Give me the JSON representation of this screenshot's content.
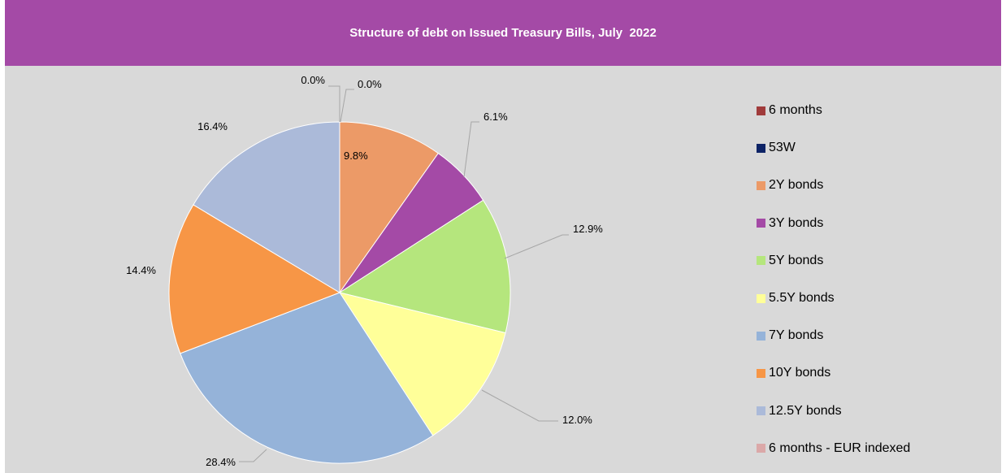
{
  "colors": {
    "title_bar": "#a44aa6",
    "plot_background": "#d9d9d9"
  },
  "chart_data": {
    "type": "pie",
    "title": "Structure of debt on Issued Treasury Bills, July  2022",
    "legend_position": "right",
    "slices": [
      {
        "name": "6 months",
        "value": 0.0,
        "label": "0.0%",
        "color": "#a03b3b"
      },
      {
        "name": "53W",
        "value": 0.0,
        "label": "0.0%",
        "color": "#0d2366"
      },
      {
        "name": "2Y bonds",
        "value": 9.8,
        "label": "9.8%",
        "color": "#ec9a67"
      },
      {
        "name": "3Y bonds",
        "value": 6.1,
        "label": "6.1%",
        "color": "#a44aa6"
      },
      {
        "name": "5Y bonds",
        "value": 12.9,
        "label": "12.9%",
        "color": "#b5e67d"
      },
      {
        "name": "5.5Y bonds",
        "value": 12.0,
        "label": "12.0%",
        "color": "#ffff99"
      },
      {
        "name": "7Y bonds",
        "value": 28.4,
        "label": "28.4%",
        "color": "#95b3d9"
      },
      {
        "name": "10Y bonds",
        "value": 14.4,
        "label": "14.4%",
        "color": "#f79646"
      },
      {
        "name": "12.5Y bonds",
        "value": 16.4,
        "label": "16.4%",
        "color": "#abbad9"
      },
      {
        "name": "6 months - EUR indexed",
        "value": 0.0,
        "label": "0.0%",
        "color": "#dba8a8"
      }
    ]
  }
}
